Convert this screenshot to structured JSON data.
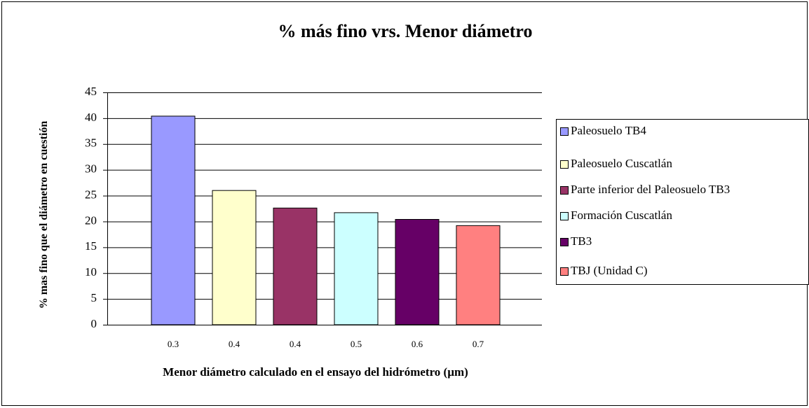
{
  "chart_data": {
    "type": "bar",
    "title": "% más fino vrs. Menor diámetro",
    "x_label": "Menor diámetro calculado en el ensayo del hidrómetro (µm)",
    "y_label": "% mas fino que el diámetro en cuestión",
    "categories": [
      "0.3",
      "0.4",
      "0.4",
      "0.5",
      "0.6",
      "0.7"
    ],
    "series": [
      {
        "name": "Paleosuelo TB4",
        "color": "#9999ff",
        "values": [
          40.4,
          null,
          null,
          null,
          null,
          null
        ]
      },
      {
        "name": "Paleosuelo Cuscatlán",
        "color": "#ffffcc",
        "values": [
          null,
          26,
          null,
          null,
          null,
          null
        ]
      },
      {
        "name": "Parte inferior del Paleosuelo TB3",
        "color": "#993366",
        "values": [
          null,
          null,
          22.6,
          null,
          null,
          null
        ]
      },
      {
        "name": "Formación Cuscatlán",
        "color": "#ccffff",
        "values": [
          null,
          null,
          null,
          21.7,
          null,
          null
        ]
      },
      {
        "name": "TB3",
        "color": "#660066",
        "values": [
          null,
          null,
          null,
          null,
          20.4,
          null
        ]
      },
      {
        "name": "TBJ (Unidad C)",
        "color": "#ff8080",
        "values": [
          null,
          null,
          null,
          null,
          null,
          19.2
        ]
      }
    ],
    "ylim": [
      0,
      45
    ],
    "yticks": [
      0,
      5,
      10,
      15,
      20,
      25,
      30,
      35,
      40,
      45
    ],
    "grid": true,
    "legend": "right"
  }
}
